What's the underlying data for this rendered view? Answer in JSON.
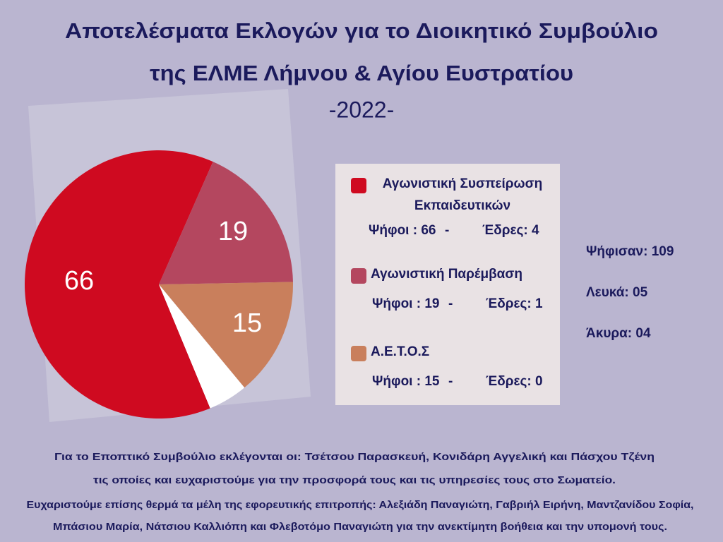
{
  "chart_data": {
    "type": "pie",
    "title": [
      "Αποτελέσματα  Εκλογών για το Διοικητικό Συμβούλιο",
      "της ΕΛΜΕ Λήμνου & Αγίου Ευστρατίου"
    ],
    "subtitle": "-2022-",
    "categories": [
      "Αγωνιστική Συσπείρωση Εκπαιδευτικών",
      "Αγωνιστική Παρέμβαση",
      "Α.Ε.Τ.Ο.Σ",
      null
    ],
    "values": [
      66,
      19,
      15,
      5
    ],
    "colors": [
      "#cf0a20",
      "#b4475f",
      "#c97f5c",
      "#ffffff"
    ],
    "legend_details": [
      [
        "Ψήφοι : 66",
        "-",
        "Έδρες: 4"
      ],
      [
        "Ψήφοι : 19",
        "-",
        "Έδρες: 1"
      ],
      [
        "Ψήφοι : 15",
        "-",
        "Έδρες: 0"
      ]
    ],
    "stats": [
      "Ψήφισαν: 109",
      "Λευκά: 05",
      "Άκυρα: 04"
    ],
    "footer": [
      "Για το Εποπτικό Συμβούλιο εκλέγονται οι: Τσέτσου Παρασκευή, Κονιδάρη Αγγελική και Πάσχου Τζένη",
      "τις οποίες και ευχαριστούμε για την προσφορά τους και τις υπηρεσίες τους στο Σωματείο.",
      "Ευχαριστούμε επίσης θερμά τα μέλη της εφορευτικής επιτροπής: Αλεξιάδη Παναγιώτη, Γαβριήλ Ειρήνη, Μαντζανίδου Σοφία,",
      "Μπάσιου Μαρία, Νάτσιου Καλλιόπη και Φλεβοτόμο Παναγιώτη για την ανεκτίμητη βοήθεια και την υπομονή τους."
    ]
  }
}
